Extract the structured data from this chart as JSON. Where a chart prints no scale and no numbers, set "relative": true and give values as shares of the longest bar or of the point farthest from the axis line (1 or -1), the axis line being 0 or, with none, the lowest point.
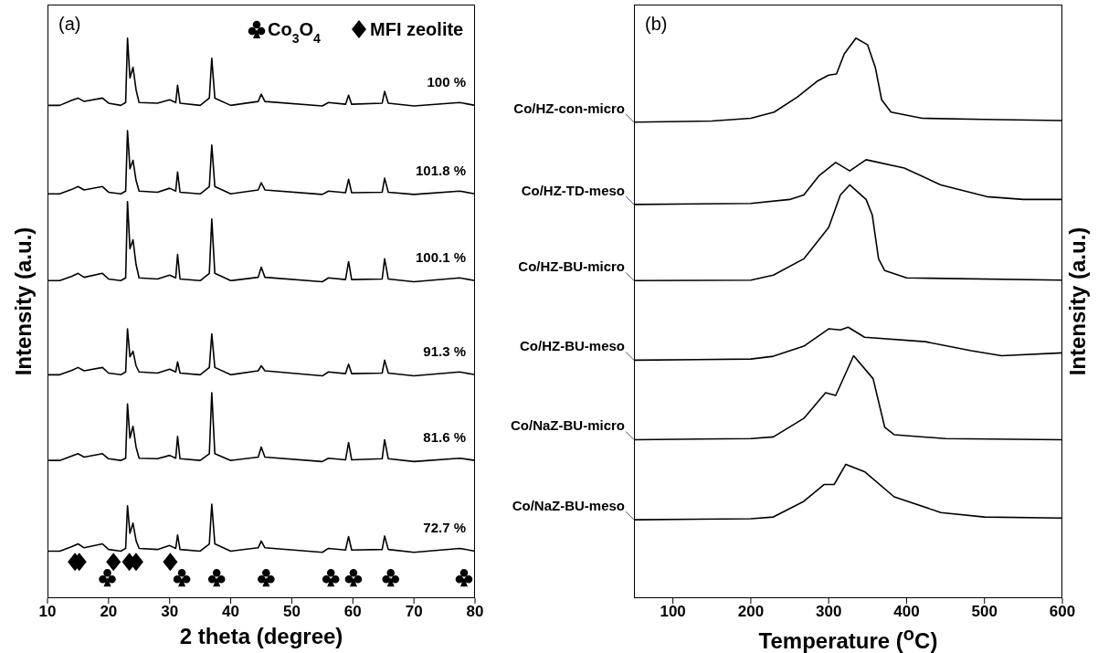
{
  "chart_data": [
    {
      "type": "line",
      "title": "(a)",
      "xlabel": "2 theta (degree)",
      "ylabel": "Intensity (a.u.)",
      "relative": true,
      "xlim": [
        10,
        80
      ],
      "xticks": [
        10,
        20,
        30,
        40,
        50,
        60,
        70,
        80
      ],
      "x": [
        10,
        12,
        14,
        15,
        16,
        19,
        20,
        22,
        22.8,
        23.1,
        23.5,
        24,
        24.5,
        25,
        28,
        30,
        31,
        31.3,
        31.7,
        35,
        36.5,
        36.9,
        37.4,
        40,
        44.5,
        45,
        45.6,
        55,
        56,
        58.8,
        59.3,
        59.8,
        64.8,
        65.2,
        65.8,
        70,
        77.5,
        80
      ],
      "series": [
        {
          "color": "#000000",
          "values": [
            0.88,
            0.88,
            0.889,
            0.893,
            0.887,
            0.893,
            0.884,
            0.88,
            0.885,
            1.0,
            0.929,
            0.948,
            0.908,
            0.885,
            0.884,
            0.89,
            0.885,
            0.916,
            0.884,
            0.88,
            0.893,
            0.964,
            0.893,
            0.88,
            0.887,
            0.9,
            0.887,
            0.879,
            0.885,
            0.882,
            0.898,
            0.882,
            0.884,
            0.905,
            0.884,
            0.879,
            0.885,
            0.88
          ]
        },
        {
          "color": "#000000",
          "values": [
            0.722,
            0.722,
            0.73,
            0.735,
            0.729,
            0.735,
            0.725,
            0.722,
            0.727,
            0.835,
            0.767,
            0.782,
            0.746,
            0.727,
            0.725,
            0.732,
            0.727,
            0.761,
            0.725,
            0.722,
            0.735,
            0.809,
            0.735,
            0.722,
            0.729,
            0.742,
            0.729,
            0.721,
            0.727,
            0.724,
            0.748,
            0.724,
            0.725,
            0.75,
            0.725,
            0.721,
            0.727,
            0.722
          ]
        },
        {
          "color": "#000000",
          "values": [
            0.567,
            0.567,
            0.575,
            0.58,
            0.573,
            0.58,
            0.57,
            0.567,
            0.572,
            0.708,
            0.624,
            0.64,
            0.596,
            0.572,
            0.57,
            0.577,
            0.572,
            0.614,
            0.57,
            0.567,
            0.58,
            0.677,
            0.58,
            0.567,
            0.573,
            0.591,
            0.573,
            0.565,
            0.572,
            0.569,
            0.601,
            0.569,
            0.57,
            0.606,
            0.57,
            0.565,
            0.572,
            0.567
          ]
        },
        {
          "color": "#000000",
          "values": [
            0.399,
            0.399,
            0.407,
            0.412,
            0.406,
            0.412,
            0.402,
            0.399,
            0.404,
            0.481,
            0.431,
            0.441,
            0.415,
            0.404,
            0.402,
            0.409,
            0.404,
            0.422,
            0.402,
            0.399,
            0.412,
            0.472,
            0.412,
            0.399,
            0.406,
            0.415,
            0.406,
            0.397,
            0.404,
            0.401,
            0.418,
            0.401,
            0.402,
            0.425,
            0.402,
            0.397,
            0.404,
            0.399
          ]
        },
        {
          "color": "#000000",
          "values": [
            0.246,
            0.246,
            0.254,
            0.258,
            0.252,
            0.258,
            0.249,
            0.246,
            0.25,
            0.347,
            0.286,
            0.307,
            0.27,
            0.25,
            0.249,
            0.255,
            0.25,
            0.289,
            0.249,
            0.246,
            0.258,
            0.367,
            0.258,
            0.246,
            0.252,
            0.27,
            0.252,
            0.244,
            0.25,
            0.247,
            0.278,
            0.247,
            0.249,
            0.283,
            0.249,
            0.244,
            0.25,
            0.246
          ]
        },
        {
          "color": "#000000",
          "values": [
            0.084,
            0.084,
            0.092,
            0.097,
            0.09,
            0.097,
            0.087,
            0.084,
            0.089,
            0.165,
            0.116,
            0.134,
            0.103,
            0.089,
            0.087,
            0.094,
            0.089,
            0.113,
            0.087,
            0.084,
            0.097,
            0.168,
            0.097,
            0.084,
            0.09,
            0.102,
            0.09,
            0.082,
            0.089,
            0.086,
            0.11,
            0.086,
            0.087,
            0.111,
            0.087,
            0.082,
            0.089,
            0.084
          ]
        },
        {
          "type": "scatter",
          "name": "Co$_{3}$O$_{4}$",
          "color": "#000000",
          "x": [
            19.8,
            32,
            37.7,
            45.8,
            56.4,
            60.1,
            66.2,
            78.2
          ],
          "values": [
            0.037,
            0.037,
            0.037,
            0.037,
            0.037,
            0.037,
            0.037,
            0.037
          ]
        },
        {
          "type": "scatter",
          "name": "MFI zeolite",
          "marker": "diamond",
          "color": "#000000",
          "x": [
            14.5,
            15.2,
            20.8,
            23.4,
            24.5,
            30.1
          ],
          "values": [
            0.065,
            0.065,
            0.065,
            0.065,
            0.065,
            0.065
          ]
        }
      ],
      "legend": "top right",
      "annotations": [
        "100 %",
        "101.8 %",
        "100.1 %",
        "91.3 %",
        "81.6 %",
        "72.7 %"
      ]
    },
    {
      "type": "line",
      "title": "(b)",
      "xlabel": "Temperature ($^{o}$C)",
      "ylabel": "Intensity (a.u.)",
      "relative": true,
      "xlim": [
        50,
        600
      ],
      "xticks": [
        100,
        200,
        300,
        400,
        500,
        600
      ],
      "series": [
        {
          "name": "Co/HZ-con-micro",
          "color": "#000000",
          "x": [
            50,
            150,
            200,
            230,
            260,
            285,
            300,
            310,
            320,
            335,
            350,
            360,
            368,
            380,
            420,
            500,
            600
          ],
          "values": [
            0.85,
            0.852,
            0.857,
            0.868,
            0.895,
            0.923,
            0.934,
            0.936,
            0.972,
            1.0,
            0.988,
            0.947,
            0.89,
            0.868,
            0.857,
            0.855,
            0.853
          ]
        },
        {
          "name": "Co/HZ-TD-meso",
          "color": "#000000",
          "x": [
            50,
            200,
            250,
            268,
            288,
            309,
            327,
            348,
            397,
            444,
            503,
            550,
            600
          ],
          "values": [
            0.703,
            0.705,
            0.712,
            0.72,
            0.755,
            0.778,
            0.763,
            0.783,
            0.768,
            0.738,
            0.717,
            0.712,
            0.712
          ]
        },
        {
          "name": "Co/HZ-BU-micro",
          "color": "#000000",
          "x": [
            50,
            200,
            229,
            268,
            300,
            315,
            327,
            348,
            356,
            364,
            372,
            400,
            600
          ],
          "values": [
            0.567,
            0.568,
            0.577,
            0.606,
            0.662,
            0.72,
            0.738,
            0.712,
            0.684,
            0.606,
            0.585,
            0.572,
            0.568
          ]
        },
        {
          "name": "Co/HZ-BU-meso",
          "color": "#000000",
          "x": [
            50,
            200,
            229,
            268,
            300,
            315,
            325,
            346,
            424,
            483,
            522,
            600
          ],
          "values": [
            0.425,
            0.427,
            0.432,
            0.45,
            0.481,
            0.479,
            0.484,
            0.466,
            0.458,
            0.442,
            0.433,
            0.438
          ]
        },
        {
          "name": "Co/NaZ-BU-micro",
          "color": "#000000",
          "x": [
            50,
            200,
            229,
            268,
            296,
            309,
            332,
            357,
            372,
            384,
            450,
            600
          ],
          "values": [
            0.283,
            0.285,
            0.288,
            0.321,
            0.367,
            0.362,
            0.433,
            0.392,
            0.305,
            0.292,
            0.285,
            0.283
          ]
        },
        {
          "name": "Co/NaZ-BU-meso",
          "color": "#000000",
          "x": [
            50,
            200,
            229,
            268,
            294,
            307,
            322,
            346,
            384,
            444,
            500,
            600
          ],
          "values": [
            0.14,
            0.142,
            0.145,
            0.173,
            0.203,
            0.203,
            0.239,
            0.226,
            0.181,
            0.153,
            0.145,
            0.143
          ]
        }
      ]
    }
  ]
}
